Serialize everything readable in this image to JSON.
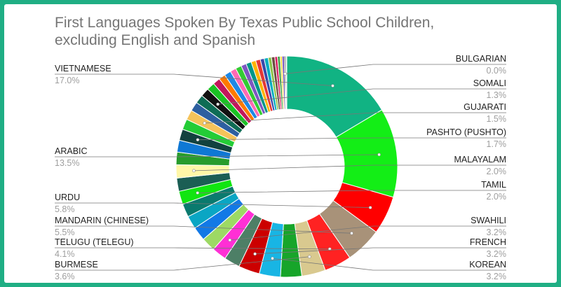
{
  "chart_data": {
    "type": "pie",
    "donut": true,
    "title_lines": [
      "First Languages Spoken By Texas Public School Children,",
      "excluding English and Spanish"
    ],
    "labels": [
      {
        "name": "VIETNAMESE",
        "pct": "17.0%"
      },
      {
        "name": "ARABIC",
        "pct": "13.5%"
      },
      {
        "name": "URDU",
        "pct": "5.8%"
      },
      {
        "name": "MANDARIN (CHINESE)",
        "pct": "5.5%"
      },
      {
        "name": "TELUGU (TELEGU)",
        "pct": "4.1%"
      },
      {
        "name": "BURMESE",
        "pct": "3.6%"
      },
      {
        "name": "KOREAN",
        "pct": "3.2%"
      },
      {
        "name": "FRENCH",
        "pct": "3.2%"
      },
      {
        "name": "SWAHILI",
        "pct": "3.2%"
      },
      {
        "name": "TAMIL",
        "pct": "2.0%"
      },
      {
        "name": "MALAYALAM",
        "pct": "2.0%"
      },
      {
        "name": "PASHTO (PUSHTO)",
        "pct": "1.7%"
      },
      {
        "name": "GUJARATI",
        "pct": "1.5%"
      },
      {
        "name": "SOMALI",
        "pct": "1.3%"
      },
      {
        "name": "BULGARIAN",
        "pct": "0.0%"
      }
    ],
    "slices": [
      {
        "value": 17.0,
        "color": "#11b383"
      },
      {
        "value": 13.5,
        "color": "#13ee16"
      },
      {
        "value": 5.8,
        "color": "#ff0000"
      },
      {
        "value": 5.5,
        "color": "#a89279"
      },
      {
        "value": 4.1,
        "color": "#ff2222"
      },
      {
        "value": 3.6,
        "color": "#d9c98f"
      },
      {
        "value": 3.2,
        "color": "#17a52a"
      },
      {
        "value": 3.2,
        "color": "#18b5e4"
      },
      {
        "value": 3.2,
        "color": "#cc0000"
      },
      {
        "value": 2.4,
        "color": "#4d7f66"
      },
      {
        "value": 2.2,
        "color": "#ff2fd5"
      },
      {
        "value": 2.1,
        "color": "#9dd964"
      },
      {
        "value": 2.1,
        "color": "#1279e6"
      },
      {
        "value": 2.0,
        "color": "#0aa6c4"
      },
      {
        "value": 2.0,
        "color": "#0a7a6e"
      },
      {
        "value": 2.0,
        "color": "#11e511"
      },
      {
        "value": 2.0,
        "color": "#1b5e54"
      },
      {
        "value": 2.0,
        "color": "#fff7a8"
      },
      {
        "value": 1.9,
        "color": "#279c2c"
      },
      {
        "value": 1.8,
        "color": "#0f78d4"
      },
      {
        "value": 1.7,
        "color": "#12423f"
      },
      {
        "value": 1.6,
        "color": "#23cc36"
      },
      {
        "value": 1.5,
        "color": "#f5c35a"
      },
      {
        "value": 1.4,
        "color": "#2d5fa0"
      },
      {
        "value": 1.3,
        "color": "#0e6c55"
      },
      {
        "value": 1.3,
        "color": "#111111"
      },
      {
        "value": 1.2,
        "color": "#19c223"
      },
      {
        "value": 1.1,
        "color": "#c2185b"
      },
      {
        "value": 1.0,
        "color": "#ff7a00"
      },
      {
        "value": 1.0,
        "color": "#1e88e5"
      },
      {
        "value": 0.9,
        "color": "#ff69b4"
      },
      {
        "value": 0.9,
        "color": "#33cc33"
      },
      {
        "value": 0.8,
        "color": "#7e57c2"
      },
      {
        "value": 0.8,
        "color": "#009688"
      },
      {
        "value": 0.7,
        "color": "#ffb300"
      },
      {
        "value": 0.7,
        "color": "#e53935"
      },
      {
        "value": 0.6,
        "color": "#3949ab"
      },
      {
        "value": 0.6,
        "color": "#00acc1"
      },
      {
        "value": 0.5,
        "color": "#8bc34a"
      },
      {
        "value": 0.5,
        "color": "#6d4c41"
      },
      {
        "value": 0.4,
        "color": "#d81b60"
      },
      {
        "value": 0.4,
        "color": "#43a047"
      },
      {
        "value": 0.3,
        "color": "#fdd835"
      },
      {
        "value": 0.3,
        "color": "#5e35b1"
      },
      {
        "value": 0.2,
        "color": "#263238"
      },
      {
        "value": 0.2,
        "color": "#cfcfcf"
      }
    ]
  }
}
